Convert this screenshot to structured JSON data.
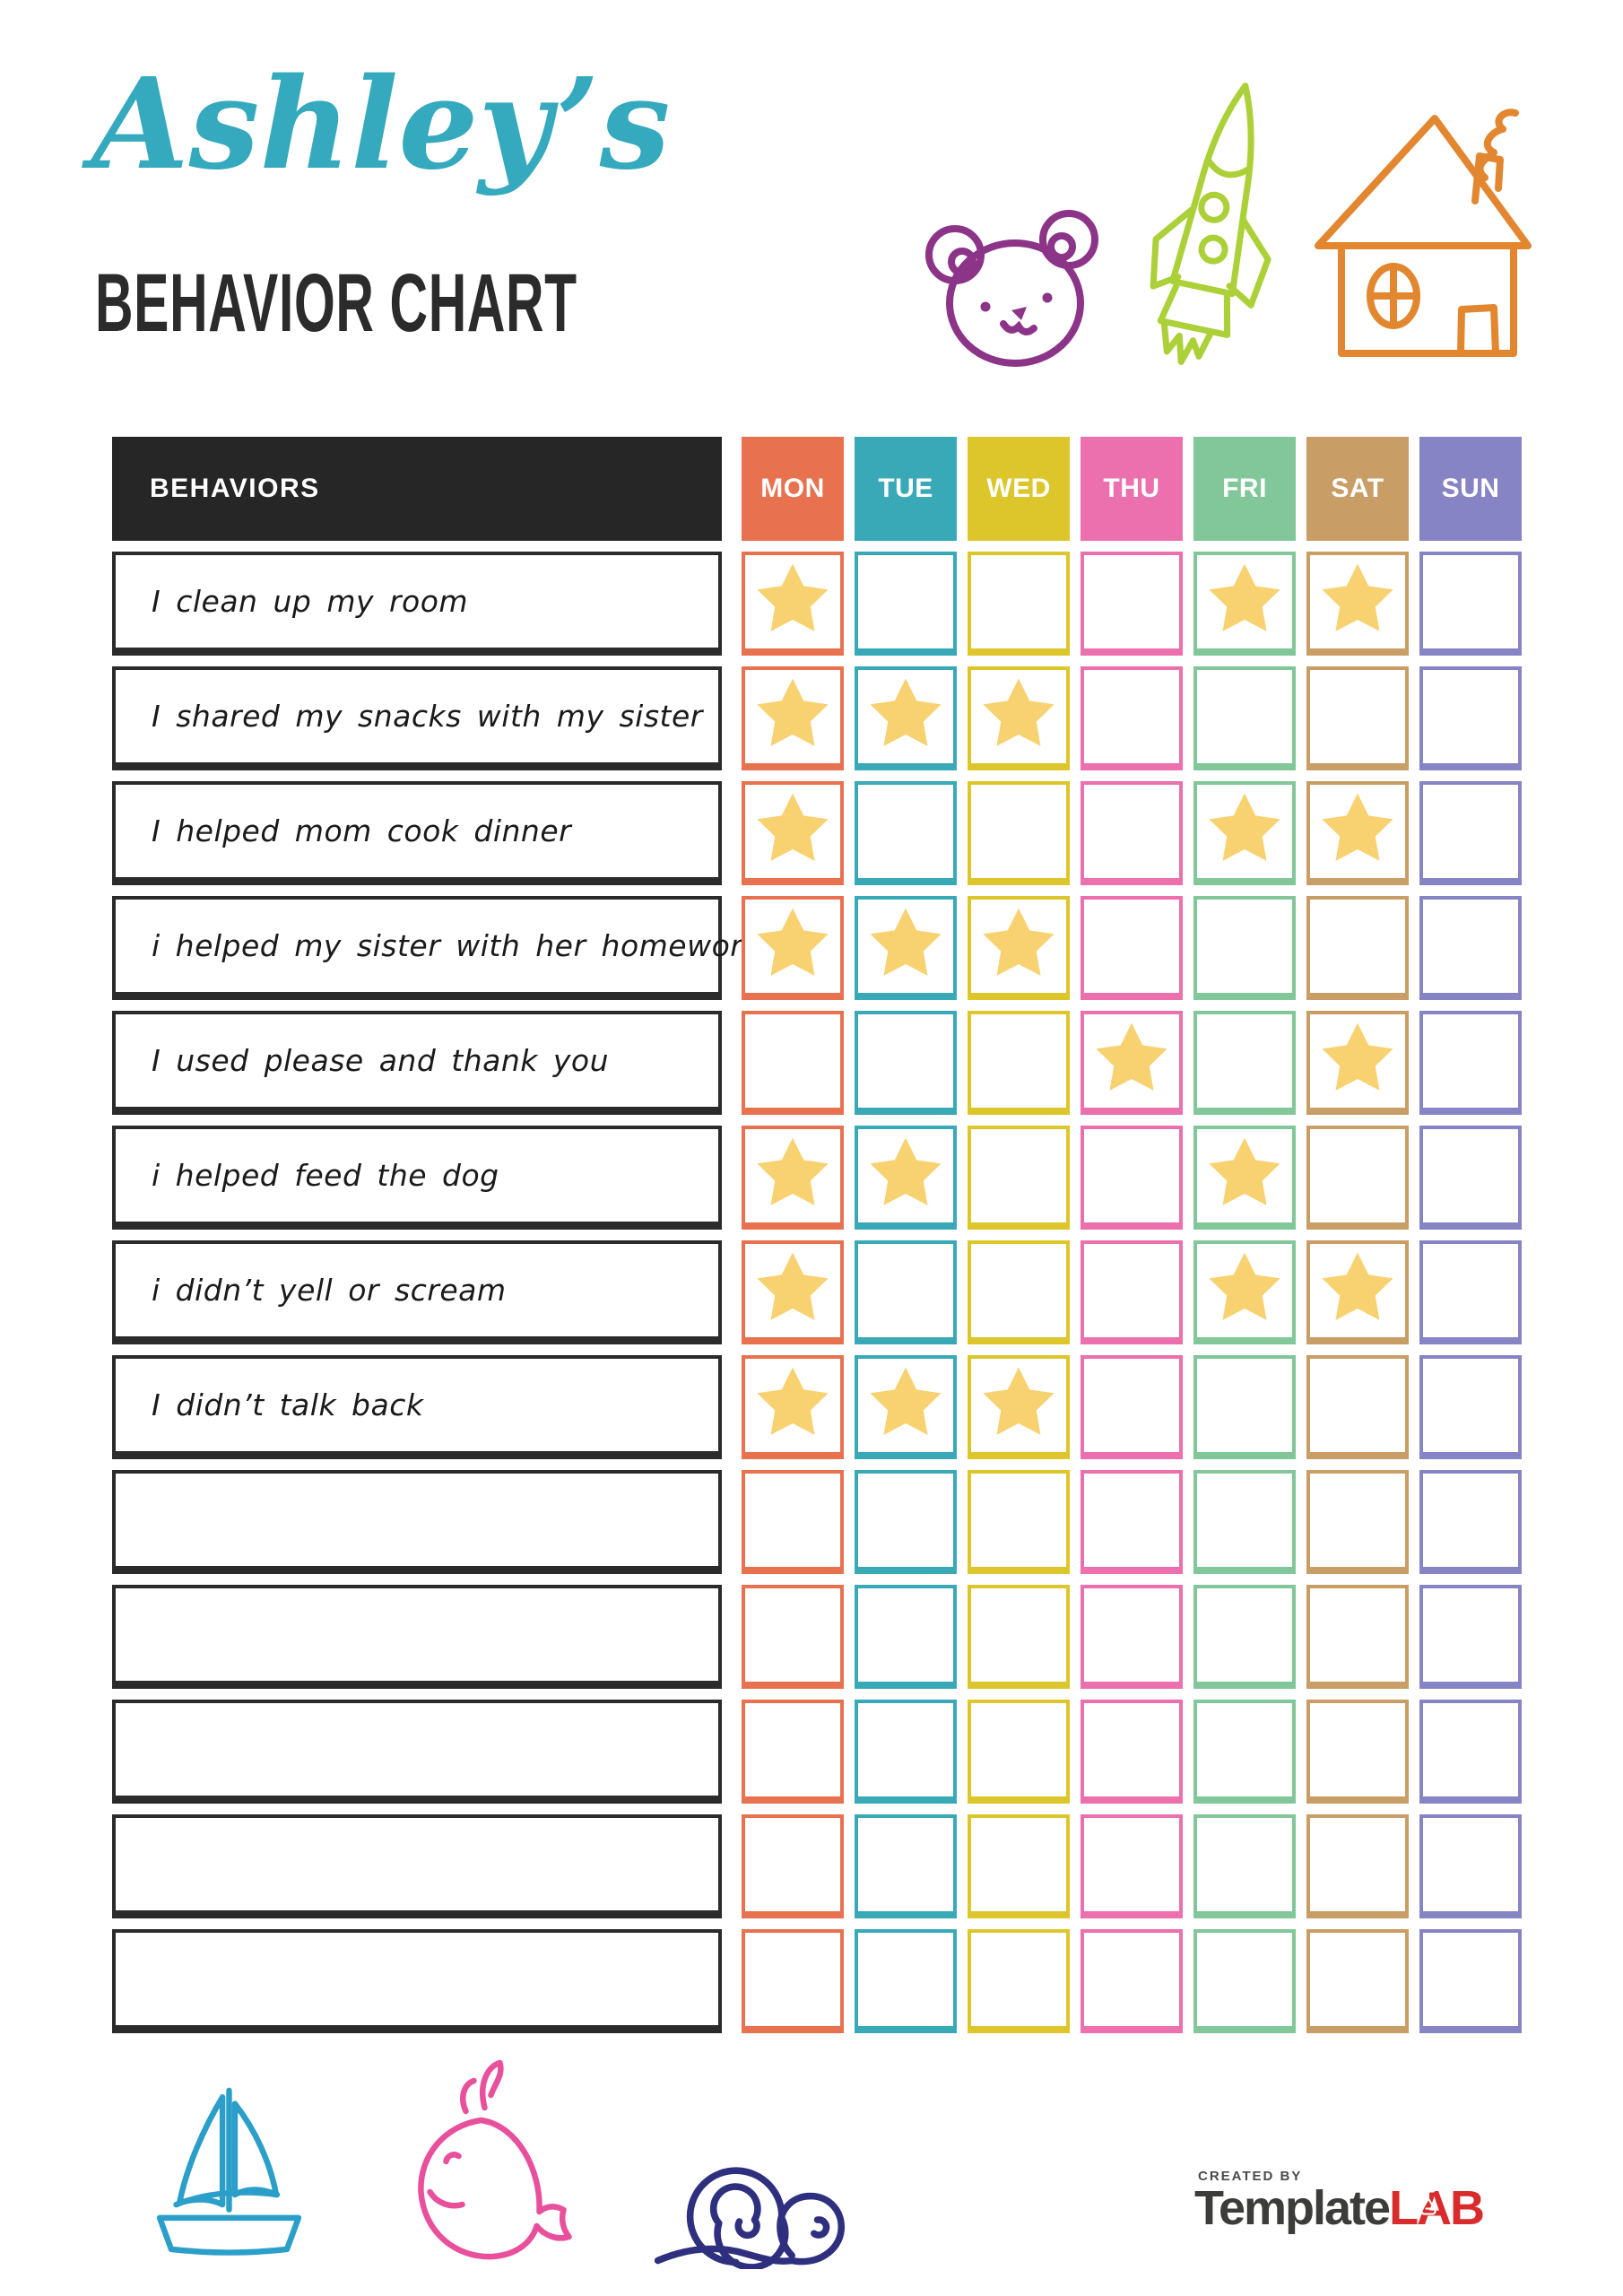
{
  "header": {
    "name": "Ashley’s",
    "title": "BEHAVIOR CHART",
    "doodles": [
      "bear-icon",
      "rocket-icon",
      "house-icon"
    ]
  },
  "table": {
    "behaviors_header": "BEHAVIORS",
    "days": [
      {
        "label": "MON",
        "color": "#E8714F"
      },
      {
        "label": "TUE",
        "color": "#39A9B7"
      },
      {
        "label": "WED",
        "color": "#DCC62B"
      },
      {
        "label": "THU",
        "color": "#EC70AE"
      },
      {
        "label": "FRI",
        "color": "#82C799"
      },
      {
        "label": "SAT",
        "color": "#C99E66"
      },
      {
        "label": "SUN",
        "color": "#8784C5"
      }
    ],
    "star_color": "#F8D170",
    "rows": [
      {
        "label": "I clean up my room",
        "stars": [
          true,
          false,
          false,
          false,
          true,
          true,
          false
        ]
      },
      {
        "label": "I shared my snacks with my sister",
        "stars": [
          true,
          true,
          true,
          false,
          false,
          false,
          false
        ]
      },
      {
        "label": "I helped mom cook dinner",
        "stars": [
          true,
          false,
          false,
          false,
          true,
          true,
          false
        ]
      },
      {
        "label": "i helped my sister with her homework",
        "stars": [
          true,
          true,
          true,
          false,
          false,
          false,
          false
        ]
      },
      {
        "label": "I used please and thank you",
        "stars": [
          false,
          false,
          false,
          true,
          false,
          true,
          false
        ]
      },
      {
        "label": "i helped feed the dog",
        "stars": [
          true,
          true,
          false,
          false,
          true,
          false,
          false
        ]
      },
      {
        "label": "i didn’t yell or scream",
        "stars": [
          true,
          false,
          false,
          false,
          true,
          true,
          false
        ]
      },
      {
        "label": "I didn’t talk back",
        "stars": [
          true,
          true,
          true,
          false,
          false,
          false,
          false
        ]
      },
      {
        "label": "",
        "stars": [
          false,
          false,
          false,
          false,
          false,
          false,
          false
        ]
      },
      {
        "label": "",
        "stars": [
          false,
          false,
          false,
          false,
          false,
          false,
          false
        ]
      },
      {
        "label": "",
        "stars": [
          false,
          false,
          false,
          false,
          false,
          false,
          false
        ]
      },
      {
        "label": "",
        "stars": [
          false,
          false,
          false,
          false,
          false,
          false,
          false
        ]
      },
      {
        "label": "",
        "stars": [
          false,
          false,
          false,
          false,
          false,
          false,
          false
        ]
      }
    ]
  },
  "footer": {
    "created_by": "CREATED BY",
    "brand_gray": "Template",
    "brand_red": "LAB",
    "doodles": [
      "sailboat-icon",
      "whale-icon",
      "snail-icon"
    ]
  },
  "colors": {
    "title_teal": "#35A9BD",
    "heading_dark": "#2B2B2B",
    "table_header_bg": "#262626",
    "bear_purple": "#8C3487",
    "rocket_green": "#ABD038",
    "house_orange": "#E2862F",
    "sailboat_blue": "#2B9FC9",
    "whale_pink": "#E8509C",
    "snail_navy": "#2F2F80",
    "brand_red": "#D92B2B",
    "brand_gray": "#3C3C3B"
  }
}
